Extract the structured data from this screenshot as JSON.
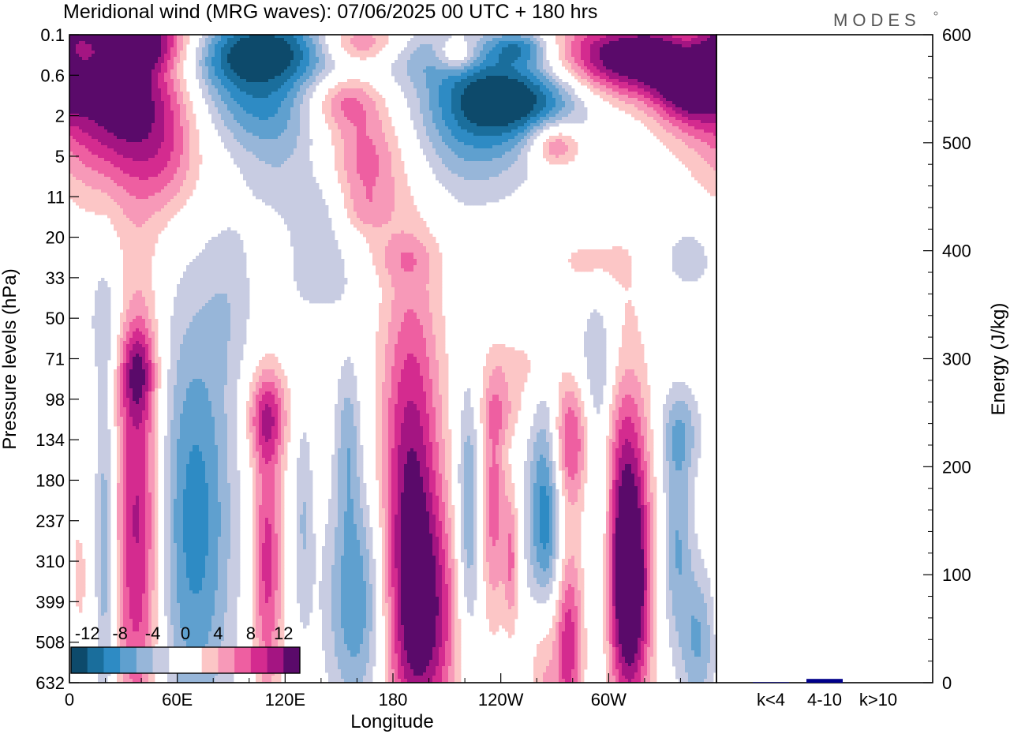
{
  "title": "Meridional wind (MRG waves):  07/06/2025  00 UTC  + 180 hrs",
  "logo": "MODES",
  "colors": {
    "negative": [
      "#0d4a6b",
      "#1a6e9c",
      "#2e8bc4",
      "#5fa0cf",
      "#97b6d9",
      "#c8cce2"
    ],
    "positive": [
      "#fcc6c6",
      "#f799b8",
      "#ee5fa1",
      "#d42b8f",
      "#a41582",
      "#5a0a6a"
    ]
  },
  "chart_data": [
    {
      "type": "heatmap",
      "description_free": true,
      "xlabel": "Longitude",
      "ylabel": "Pressure levels (hPa)",
      "x_ticks": [
        "0",
        "60E",
        "120E",
        "180",
        "120W",
        "60W"
      ],
      "x_tick_values": [
        0,
        60,
        120,
        180,
        240,
        300
      ],
      "xlim": [
        0,
        360
      ],
      "y_ticks": [
        "0.1",
        "0.6",
        "2",
        "5",
        "11",
        "20",
        "33",
        "50",
        "71",
        "98",
        "134",
        "180",
        "237",
        "310",
        "399",
        "508",
        "632"
      ],
      "colorbar_ticks": [
        "-12",
        "-8",
        "-4",
        "0",
        "4",
        "8",
        "12"
      ],
      "colorbar_levels": [
        -14,
        -12,
        -10,
        -8,
        -6,
        -4,
        -2,
        0,
        2,
        4,
        6,
        8,
        10,
        12,
        14
      ],
      "blobs": [
        {
          "lon": 30,
          "lev": 1.4,
          "wlon": 28,
          "wlev": 1.6,
          "v": 15
        },
        {
          "lon": 35,
          "lev": 0.2,
          "wlon": 35,
          "wlev": 0.5,
          "v": 14
        },
        {
          "lon": 55,
          "lev": 3.3,
          "wlon": 12,
          "wlev": 1.0,
          "v": 3
        },
        {
          "lon": 95,
          "lev": 0.3,
          "wlon": 45,
          "wlev": 0.6,
          "v": -14
        },
        {
          "lon": 100,
          "lev": 1.5,
          "wlon": 25,
          "wlev": 0.9,
          "v": -8
        },
        {
          "lon": 115,
          "lev": 3.0,
          "wlon": 15,
          "wlev": 1.2,
          "v": -3
        },
        {
          "lon": 160,
          "lev": 0.2,
          "wlon": 18,
          "wlev": 0.4,
          "v": 10
        },
        {
          "lon": 152,
          "lev": 1.6,
          "wlon": 14,
          "wlev": 0.5,
          "v": 6
        },
        {
          "lon": 165,
          "lev": 3.1,
          "wlon": 14,
          "wlev": 1.0,
          "v": 7
        },
        {
          "lon": 200,
          "lev": 0.5,
          "wlon": 20,
          "wlev": 0.5,
          "v": -4
        },
        {
          "lon": 215,
          "lev": 0.5,
          "wlon": 8,
          "wlev": 0.3,
          "v": 7
        },
        {
          "lon": 225,
          "lev": 2.3,
          "wlon": 25,
          "wlev": 1.2,
          "v": -7
        },
        {
          "lon": 250,
          "lev": 1.5,
          "wlon": 28,
          "wlev": 0.7,
          "v": -12
        },
        {
          "lon": 250,
          "lev": 0.3,
          "wlon": 12,
          "wlev": 0.3,
          "v": -8
        },
        {
          "lon": 270,
          "lev": 2.7,
          "wlon": 10,
          "wlev": 0.4,
          "v": 8
        },
        {
          "lon": 310,
          "lev": 0.6,
          "wlon": 30,
          "wlev": 0.7,
          "v": 15
        },
        {
          "lon": 345,
          "lev": 1.3,
          "wlon": 14,
          "wlev": 0.7,
          "v": 10
        },
        {
          "lon": 10,
          "lev": 0.4,
          "wlon": 8,
          "wlev": 0.3,
          "v": -9
        },
        {
          "lon": 345,
          "lev": 0.2,
          "wlon": 10,
          "wlev": 0.3,
          "v": -6
        },
        {
          "lon": 140,
          "lev": 4.4,
          "wlon": 12,
          "wlev": 0.8,
          "v": -3
        },
        {
          "lon": 165,
          "lev": 4.4,
          "wlon": 10,
          "wlev": 0.4,
          "v": 2.5
        },
        {
          "lon": 140,
          "lev": 6.0,
          "wlon": 14,
          "wlev": 0.7,
          "v": -3
        },
        {
          "lon": 185,
          "lev": 5.5,
          "wlon": 14,
          "wlev": 0.4,
          "v": 2.5
        },
        {
          "lon": 290,
          "lev": 5.6,
          "wlon": 14,
          "wlev": 0.4,
          "v": 3
        },
        {
          "lon": 345,
          "lev": 5.5,
          "wlon": 12,
          "wlev": 0.7,
          "v": -3
        },
        {
          "lon": 38,
          "lev": 8.3,
          "wlon": 7,
          "wlev": 0.8,
          "v": 7
        },
        {
          "lon": 38,
          "lev": 12.0,
          "wlon": 9,
          "wlev": 4.0,
          "v": 11
        },
        {
          "lon": 20,
          "lev": 12.5,
          "wlon": 4,
          "wlev": 3.5,
          "v": -6
        },
        {
          "lon": 5,
          "lev": 13.5,
          "wlon": 4,
          "wlev": 1.2,
          "v": 3
        },
        {
          "lon": 70,
          "lev": 12.0,
          "wlon": 15,
          "wlev": 3.8,
          "v": -9
        },
        {
          "lon": 110,
          "lev": 9.4,
          "wlon": 8,
          "wlev": 0.8,
          "v": 8
        },
        {
          "lon": 110,
          "lev": 13.0,
          "wlon": 6,
          "wlev": 2.5,
          "v": 9
        },
        {
          "lon": 130,
          "lev": 12.0,
          "wlon": 4,
          "wlev": 2.0,
          "v": -4
        },
        {
          "lon": 155,
          "lev": 10.0,
          "wlon": 5,
          "wlev": 1.5,
          "v": -5
        },
        {
          "lon": 160,
          "lev": 14.0,
          "wlon": 12,
          "wlev": 2.0,
          "v": -8
        },
        {
          "lon": 190,
          "lev": 11.5,
          "wlon": 12,
          "wlev": 4.0,
          "v": 12
        },
        {
          "lon": 200,
          "lev": 14.5,
          "wlon": 14,
          "wlev": 2.0,
          "v": 8
        },
        {
          "lon": 222,
          "lev": 12.0,
          "wlon": 5,
          "wlev": 2.5,
          "v": -7
        },
        {
          "lon": 236,
          "lev": 11.5,
          "wlon": 5,
          "wlev": 2.0,
          "v": 7
        },
        {
          "lon": 246,
          "lev": 13.0,
          "wlon": 3,
          "wlev": 1.2,
          "v": 6
        },
        {
          "lon": 265,
          "lev": 12.0,
          "wlon": 7,
          "wlev": 2.0,
          "v": -10
        },
        {
          "lon": 278,
          "lev": 10.0,
          "wlon": 7,
          "wlev": 1.2,
          "v": 9
        },
        {
          "lon": 277,
          "lev": 15.0,
          "wlon": 6,
          "wlev": 1.8,
          "v": 10
        },
        {
          "lon": 263,
          "lev": 15.5,
          "wlon": 5,
          "wlev": 1.5,
          "v": 5
        },
        {
          "lon": 295,
          "lev": 11.5,
          "wlon": 5,
          "wlev": 3.0,
          "v": -4
        },
        {
          "lon": 310,
          "lev": 11.5,
          "wlon": 9,
          "wlev": 3.0,
          "v": 10
        },
        {
          "lon": 312,
          "lev": 14.0,
          "wlon": 8,
          "wlev": 2.0,
          "v": 11
        },
        {
          "lon": 340,
          "lev": 9.8,
          "wlon": 8,
          "wlev": 0.8,
          "v": -5
        },
        {
          "lon": 338,
          "lev": 12.5,
          "wlon": 6,
          "wlev": 1.8,
          "v": -6
        },
        {
          "lon": 350,
          "lev": 15.0,
          "wlon": 7,
          "wlev": 1.3,
          "v": -6
        },
        {
          "lon": 295,
          "lev": 8.0,
          "wlon": 15,
          "wlev": 1.0,
          "v": -3
        },
        {
          "lon": 250,
          "lev": 8.2,
          "wlon": 14,
          "wlev": 0.5,
          "v": 3
        },
        {
          "lon": 240,
          "lev": 9.3,
          "wlon": 10,
          "wlev": 0.5,
          "v": 3.5
        },
        {
          "lon": 90,
          "lev": 6.5,
          "wlon": 10,
          "wlev": 1.5,
          "v": -2.5
        },
        {
          "lon": 20,
          "lev": 7.0,
          "wlon": 8,
          "wlev": 1.0,
          "v": -2.5
        }
      ]
    },
    {
      "type": "bar",
      "categories": [
        "k<4",
        "4-10",
        "k>10"
      ],
      "values": [
        0.5,
        3.5,
        0
      ],
      "ylabel": "Energy (J/kg)",
      "ylim": [
        0,
        600
      ],
      "y_ticks": [
        "0",
        "100",
        "200",
        "300",
        "400",
        "500",
        "600"
      ],
      "bar_color": "#00008b"
    }
  ]
}
